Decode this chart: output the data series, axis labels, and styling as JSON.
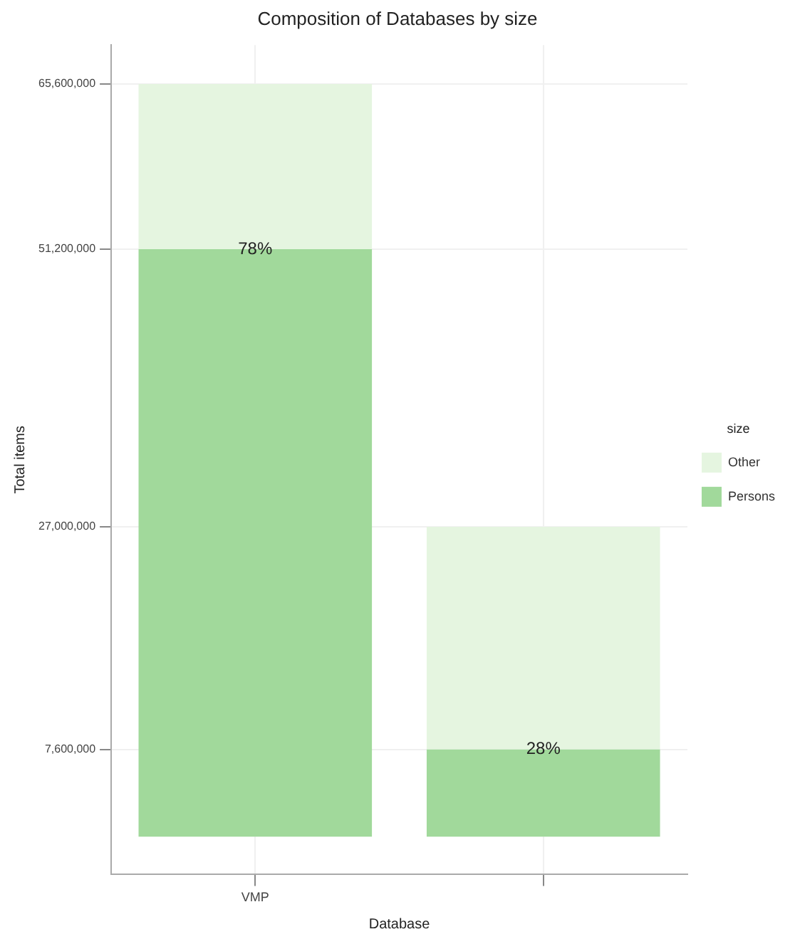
{
  "chart_data": {
    "type": "bar",
    "title": "Composition of Databases by size",
    "xlabel": "Database",
    "ylabel": "Total items",
    "legend_title": "size",
    "categories": [
      "VMP",
      null
    ],
    "stacked": true,
    "series": [
      {
        "name": "Persons",
        "color": "#a1d99b",
        "values": [
          51200000,
          7600000
        ]
      },
      {
        "name": "Other",
        "color": "#e5f5e0",
        "values": [
          14400000,
          19400000
        ]
      }
    ],
    "ylim": [
      -3300000,
      69000000
    ],
    "yticks": [
      {
        "value": 7600000,
        "label": "7,600,000"
      },
      {
        "value": 27000000,
        "label": "27,000,000"
      },
      {
        "value": 51200000,
        "label": "51,200,000"
      },
      {
        "value": 65600000,
        "label": "65,600,000"
      }
    ],
    "annotations": [
      {
        "text": "78%",
        "x": "VMP",
        "y": 51200000
      },
      {
        "text": "28%",
        "y": 7600000
      }
    ],
    "grid": true,
    "legend": "right"
  }
}
